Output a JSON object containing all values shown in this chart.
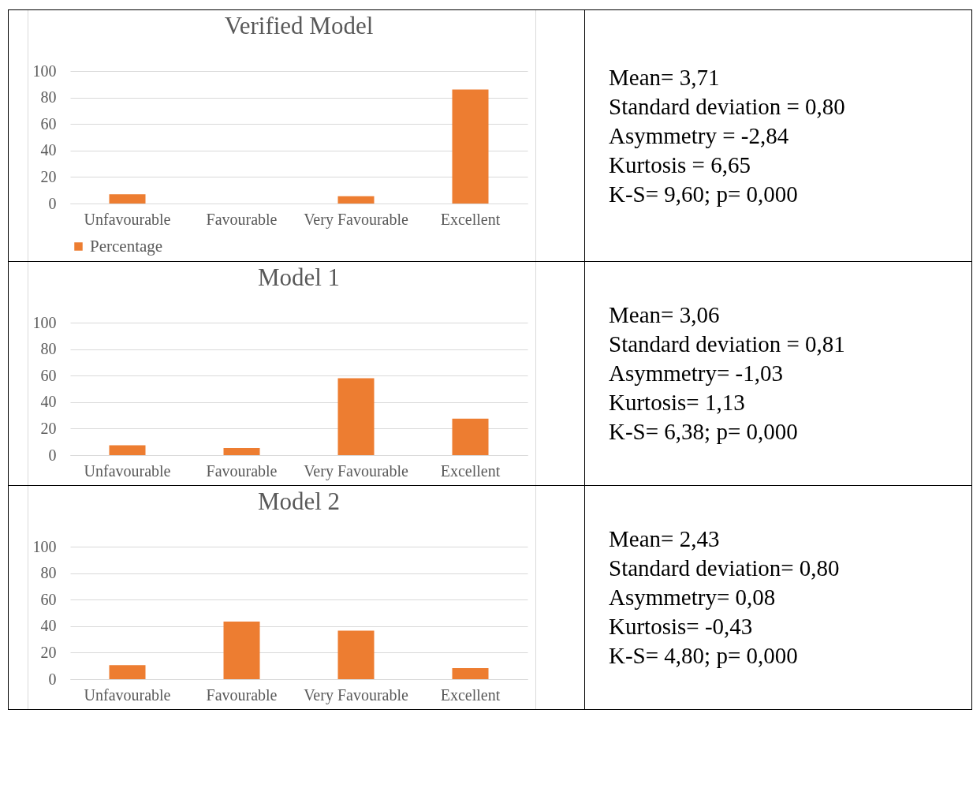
{
  "chart_data": [
    {
      "type": "bar",
      "title": "Verified Model",
      "categories": [
        "Unfavourable",
        "Favourable",
        "Very Favourable",
        "Excellent"
      ],
      "series": [
        {
          "name": "Percentage",
          "color": "#ed7d31",
          "values": [
            7,
            0,
            5.5,
            86
          ]
        }
      ],
      "ylim": [
        0,
        100
      ],
      "yticks": [
        0,
        20,
        40,
        60,
        80,
        100
      ],
      "grid": "y",
      "legend": "bottom"
    },
    {
      "type": "other",
      "annotations": [
        "Mean= 3,71",
        "Standard deviation = 0,80",
        "Asymmetry = -2,84",
        "Kurtosis = 6,65",
        "K-S= 9,60; p= 0,000"
      ]
    },
    {
      "type": "bar",
      "title": "Model 1",
      "categories": [
        "Unfavourable",
        "Favourable",
        "Very Favourable",
        "Excellent"
      ],
      "values": [
        7.5,
        5.3,
        58,
        27.5
      ],
      "color": "#ed7d31",
      "ylim": [
        0,
        100
      ],
      "yticks": [
        0,
        20,
        40,
        60,
        80,
        100
      ],
      "grid": "y"
    },
    {
      "type": "other",
      "annotations": [
        "Mean= 3,06",
        "Standard deviation = 0,81",
        "Asymmetry= -1,03",
        "Kurtosis= 1,13",
        "K-S= 6,38; p= 0,000"
      ]
    },
    {
      "type": "bar",
      "title": "Model 2",
      "categories": [
        "Unfavourable",
        "Favourable",
        "Very Favourable",
        "Excellent"
      ],
      "values": [
        10.5,
        43.4,
        36.6,
        8.3
      ],
      "color": "#ed7d31",
      "ylim": [
        0,
        100
      ],
      "yticks": [
        0,
        20,
        40,
        60,
        80,
        100
      ],
      "grid": "y"
    },
    {
      "type": "other",
      "annotations": [
        "Mean= 2,43",
        "Standard deviation= 0,80",
        "Asymmetry= 0,08",
        "Kurtosis= -0,43",
        "K-S= 4,80; p= 0,000"
      ]
    }
  ]
}
